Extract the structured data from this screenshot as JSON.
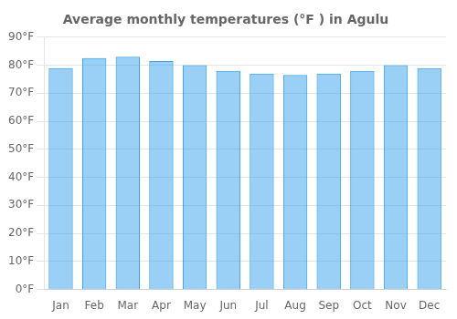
{
  "chart_data": {
    "type": "bar",
    "title": "Average monthly temperatures (°F ) in Agulu",
    "categories": [
      "Jan",
      "Feb",
      "Mar",
      "Apr",
      "May",
      "Jun",
      "Jul",
      "Aug",
      "Sep",
      "Oct",
      "Nov",
      "Dec"
    ],
    "values": [
      79,
      82.5,
      83,
      81.5,
      80,
      78,
      77,
      76.5,
      77,
      78,
      80,
      79
    ],
    "ylim": [
      0,
      90
    ],
    "yticks": [
      {
        "value": 0,
        "label": "0°F"
      },
      {
        "value": 10,
        "label": "10°F"
      },
      {
        "value": 20,
        "label": "20°F"
      },
      {
        "value": 30,
        "label": "30°F"
      },
      {
        "value": 40,
        "label": "40°F"
      },
      {
        "value": 50,
        "label": "50°F"
      },
      {
        "value": 60,
        "label": "60°F"
      },
      {
        "value": 70,
        "label": "70°F"
      },
      {
        "value": 80,
        "label": "80°F"
      },
      {
        "value": 90,
        "label": "90°F"
      }
    ],
    "grid": true
  }
}
